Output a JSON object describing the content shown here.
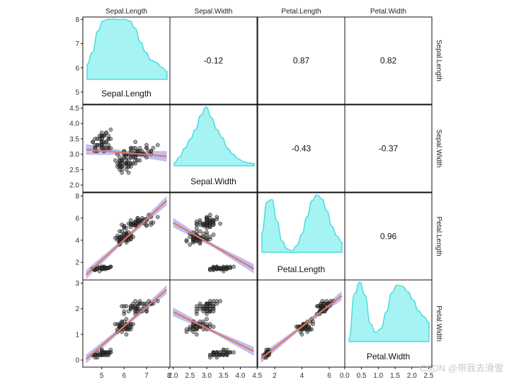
{
  "chart_data": {
    "type": "scatter-matrix",
    "title": "",
    "variables": [
      "Sepal.Length",
      "Sepal.Width",
      "Petal.Length",
      "Petal.Width"
    ],
    "ranges": [
      [
        4.3,
        7.9
      ],
      [
        2.0,
        4.4
      ],
      [
        1.0,
        6.9
      ],
      [
        0.1,
        2.5
      ]
    ],
    "tick_values": [
      [
        5,
        6,
        7,
        8
      ],
      [
        2.0,
        2.5,
        3.0,
        3.5,
        4.0,
        4.5
      ],
      [
        2,
        4,
        6
      ],
      [
        0.0,
        0.5,
        1.0,
        1.5,
        2.0,
        2.5
      ]
    ],
    "y_tick_values": [
      [
        5,
        6,
        7,
        8
      ],
      [
        2.0,
        2.5,
        3.0,
        3.5,
        4.0,
        4.5
      ],
      [
        2,
        4,
        6,
        8
      ],
      [
        0,
        1,
        2,
        3
      ]
    ],
    "y_tick_labels": [
      [
        "5",
        "6",
        "7",
        "8"
      ],
      [
        "2.0",
        "2.5",
        "3.0",
        "3.5",
        "4.0",
        "4.5"
      ],
      [
        "2",
        "4",
        "6",
        "8"
      ],
      [
        "0",
        "1",
        "2",
        "3"
      ]
    ],
    "x_tick_labels": [
      [
        "5",
        "6",
        "7",
        "8"
      ],
      [
        "2.0",
        "2.5",
        "3.0",
        "3.5",
        "4.0",
        "4.5"
      ],
      [
        "2",
        "4",
        "6"
      ],
      [
        "0.0",
        "0.5",
        "1.0",
        "1.5",
        "2.0",
        "2.5"
      ]
    ],
    "correlations": [
      {
        "row": 0,
        "col": 1,
        "value": "-0.12"
      },
      {
        "row": 0,
        "col": 2,
        "value": "0.87"
      },
      {
        "row": 0,
        "col": 3,
        "value": "0.82"
      },
      {
        "row": 1,
        "col": 2,
        "value": "-0.43"
      },
      {
        "row": 1,
        "col": 3,
        "value": "-0.37"
      },
      {
        "row": 2,
        "col": 3,
        "value": "0.96"
      }
    ],
    "regression": [
      {
        "x": 0,
        "y": 1,
        "slope": -0.062,
        "intercept": 3.42
      },
      {
        "x": 0,
        "y": 2,
        "slope": 1.858,
        "intercept": -7.1
      },
      {
        "x": 1,
        "y": 2,
        "slope": -1.735,
        "intercept": 9.06
      },
      {
        "x": 0,
        "y": 3,
        "slope": 0.753,
        "intercept": -3.2
      },
      {
        "x": 1,
        "y": 3,
        "slope": -0.64,
        "intercept": 3.16
      },
      {
        "x": 2,
        "y": 3,
        "slope": 0.416,
        "intercept": -0.36
      }
    ],
    "density_profiles": [
      [
        0.25,
        0.45,
        0.8,
        0.97,
        1.0,
        1.0,
        0.99,
        1.0,
        0.97,
        0.85,
        0.62,
        0.45,
        0.32,
        0.28,
        0.2,
        0.13
      ],
      [
        0.05,
        0.15,
        0.3,
        0.45,
        0.62,
        0.86,
        1.0,
        0.82,
        0.62,
        0.48,
        0.3,
        0.2,
        0.12,
        0.07,
        0.05,
        0.04
      ],
      [
        0.35,
        0.88,
        0.92,
        0.55,
        0.2,
        0.06,
        0.03,
        0.12,
        0.32,
        0.62,
        0.9,
        1.0,
        0.93,
        0.72,
        0.45,
        0.28,
        0.18
      ],
      [
        0.05,
        0.8,
        1.0,
        0.78,
        0.3,
        0.15,
        0.22,
        0.5,
        0.82,
        0.95,
        0.93,
        0.84,
        0.7,
        0.52,
        0.42,
        0.32
      ]
    ],
    "colors": {
      "points": "#333333",
      "line": "#e07a5f",
      "band": "#8a8ae8",
      "density_fill": "#a5f3f3",
      "density_line": "#33d6d6"
    },
    "watermark": "CSDN @带我去滑雪"
  }
}
